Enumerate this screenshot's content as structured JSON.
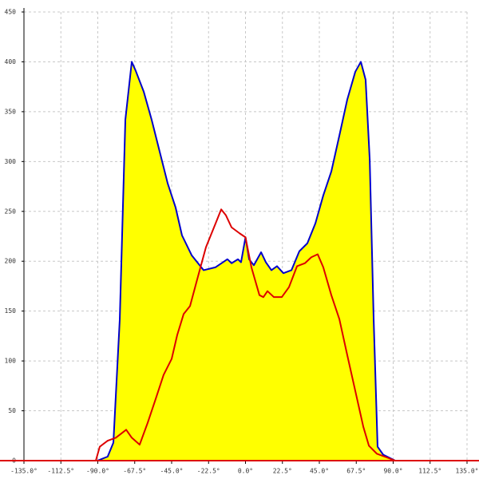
{
  "chart_data": {
    "type": "area",
    "xlim": [
      -135,
      135
    ],
    "ylim": [
      0,
      450
    ],
    "xticks": [
      {
        "value": -135,
        "label": "-135.0°"
      },
      {
        "value": -112.5,
        "label": "-112.5°"
      },
      {
        "value": -90,
        "label": "-90.0°"
      },
      {
        "value": -67.5,
        "label": "-67.5°"
      },
      {
        "value": -45,
        "label": "-45.0°"
      },
      {
        "value": -22.5,
        "label": "-22.5°"
      },
      {
        "value": 0,
        "label": "0.0°"
      },
      {
        "value": 22.5,
        "label": "22.5°"
      },
      {
        "value": 45,
        "label": "45.0°"
      },
      {
        "value": 67.5,
        "label": "67.5°"
      },
      {
        "value": 90,
        "label": "90.0°"
      },
      {
        "value": 112.5,
        "label": "112.5°"
      },
      {
        "value": 135,
        "label": "135.0°"
      }
    ],
    "yticks": [
      0,
      50,
      100,
      150,
      200,
      250,
      300,
      350,
      400,
      450
    ],
    "grid": true,
    "axis_color": "#dd0000",
    "series": [
      {
        "color": "#0000cc",
        "fill": "#ffff00",
        "x": [
          -90.2,
          -84,
          -80.5,
          -76.6,
          -73.2,
          -69.3,
          -66.9,
          -62,
          -57.2,
          -52.3,
          -47.4,
          -42.6,
          -38.7,
          -32.8,
          -25.5,
          -18.2,
          -11,
          -8.5,
          -4.6,
          -2.7,
          0,
          2.2,
          5.1,
          9.5,
          12.4,
          15.8,
          19.2,
          23.1,
          28,
          32.8,
          37.7,
          42.6,
          47.4,
          52.3,
          57.2,
          62,
          66.9,
          70.3,
          73.2,
          75.7,
          78.1,
          80.5,
          83.9,
          88.8,
          91.2
        ],
        "values": [
          0,
          4,
          18,
          142,
          342,
          400,
          391,
          370,
          342,
          310,
          278,
          254,
          226,
          206,
          191,
          194,
          202,
          198,
          202,
          199,
          224,
          202,
          196,
          209,
          199,
          191,
          195,
          188,
          191,
          210,
          218,
          238,
          266,
          290,
          326,
          362,
          390,
          400,
          382,
          302,
          142,
          14,
          6,
          2,
          0
        ]
      },
      {
        "color": "#dd0000",
        "x": [
          -91.2,
          -88.8,
          -84,
          -79,
          -72.7,
          -69.3,
          -64.5,
          -59.6,
          -54.7,
          -49.9,
          -45,
          -41.6,
          -37.7,
          -33.8,
          -29.4,
          -24.1,
          -18.2,
          -14.8,
          -11.9,
          -8.5,
          -3.6,
          0,
          3.6,
          8.5,
          10.9,
          13.4,
          17.3,
          22.1,
          26.5,
          31.4,
          36.2,
          40.1,
          44,
          47.4,
          52.3,
          57.2,
          62,
          66.9,
          71.8,
          75.2,
          80,
          86.4,
          91.2
        ],
        "values": [
          0,
          14,
          20,
          23,
          31,
          23,
          16,
          38,
          62,
          86,
          102,
          126,
          147,
          155,
          182,
          214,
          238,
          252,
          246,
          234,
          228,
          224,
          194,
          166,
          164,
          170,
          164,
          164,
          174,
          195,
          198,
          204,
          207,
          194,
          166,
          142,
          106,
          70,
          34,
          15,
          7,
          3,
          0
        ]
      }
    ]
  }
}
